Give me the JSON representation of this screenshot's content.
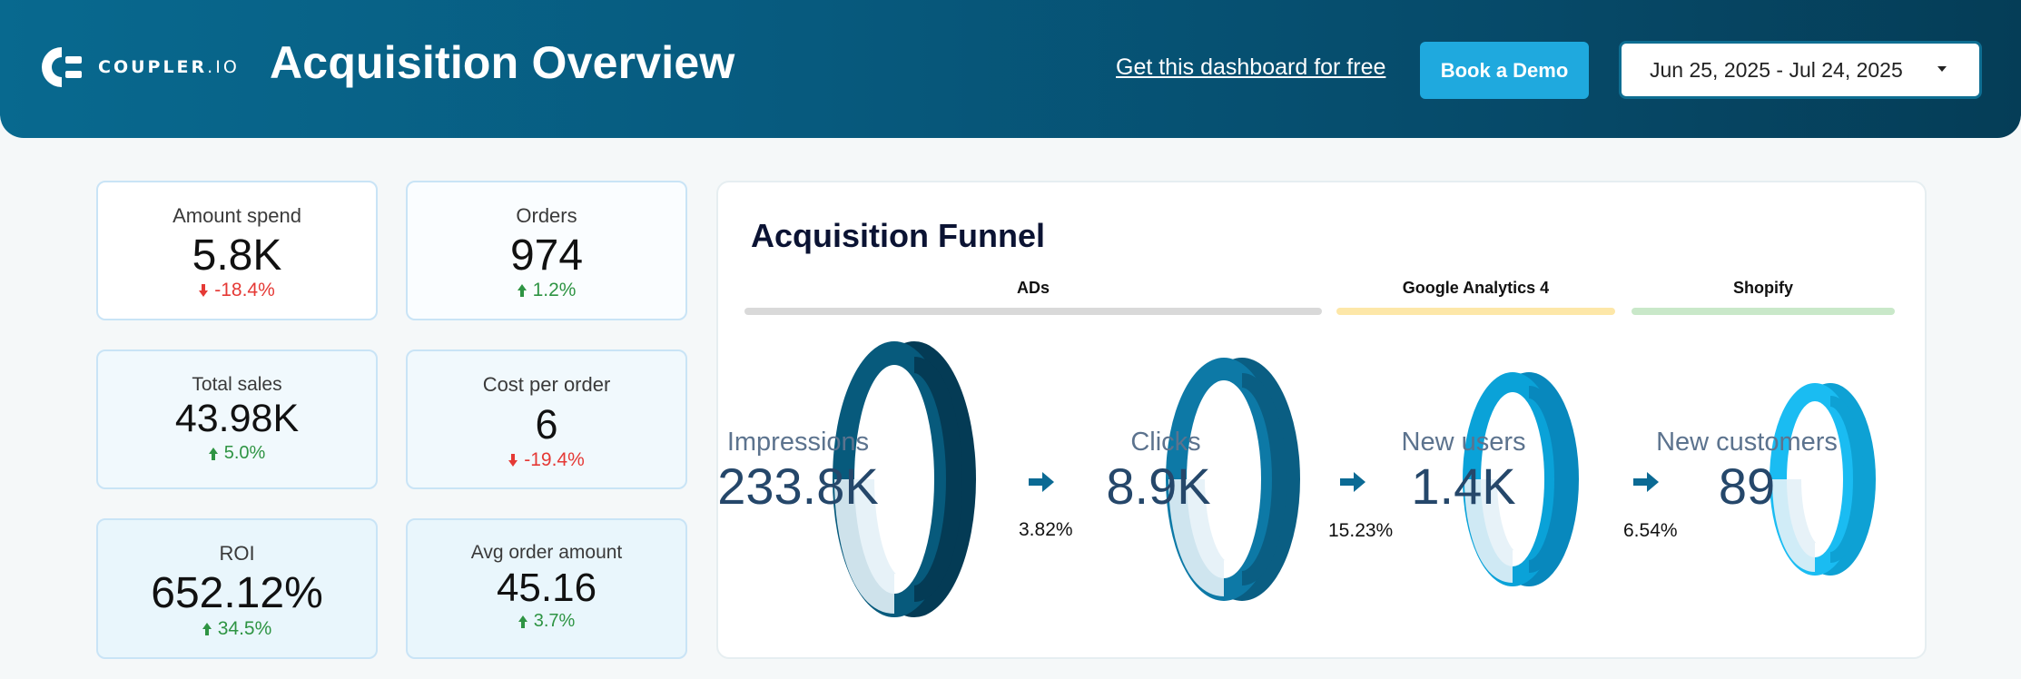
{
  "header": {
    "logo_text": "COUPLER",
    "logo_suffix": ".IO",
    "title": "Acquisition Overview",
    "free_link": "Get this dashboard for free",
    "demo_button": "Book a Demo",
    "date_range": "Jun 25, 2025 - Jul 24, 2025"
  },
  "colors": {
    "header_start": "#08698f",
    "header_end": "#053d57",
    "demo_button": "#1fa9de",
    "delta_down": "#e53935",
    "delta_up": "#2e9443",
    "ring_impressions": "#075a7c",
    "ring_clicks": "#0d79a6",
    "ring_new_users": "#0aa2d8",
    "ring_new_customers": "#1abcf2"
  },
  "kpis": [
    {
      "label": "Amount spend",
      "value": "5.8K",
      "delta": "-18.4%",
      "direction": "down"
    },
    {
      "label": "Orders",
      "value": "974",
      "delta": "1.2%",
      "direction": "up"
    },
    {
      "label": "Total sales",
      "value": "43.98K",
      "delta": "5.0%",
      "direction": "up"
    },
    {
      "label": "Cost per order",
      "value": "6",
      "delta": "-19.4%",
      "direction": "down"
    },
    {
      "label": "ROI",
      "value": "652.12%",
      "delta": "34.5%",
      "direction": "up"
    },
    {
      "label": "Avg order amount",
      "value": "45.16",
      "delta": "3.7%",
      "direction": "up"
    }
  ],
  "funnel": {
    "title": "Acquisition Funnel",
    "sections": [
      {
        "label": "ADs",
        "color": "#d9d9d9"
      },
      {
        "label": "Google Analytics 4",
        "color": "#fde7a8"
      },
      {
        "label": "Shopify",
        "color": "#c9e8c9"
      }
    ],
    "stages": [
      {
        "name": "Impressions",
        "value": "233.8K",
        "ring_icon": "funnel-ring"
      },
      {
        "name": "Clicks",
        "value": "8.9K",
        "ring_icon": "funnel-ring"
      },
      {
        "name": "New users",
        "value": "1.4K",
        "ring_icon": "funnel-ring"
      },
      {
        "name": "New customers",
        "value": "89",
        "ring_icon": "funnel-ring"
      }
    ],
    "conversion_rates": [
      "3.82%",
      "15.23%",
      "6.54%"
    ]
  }
}
